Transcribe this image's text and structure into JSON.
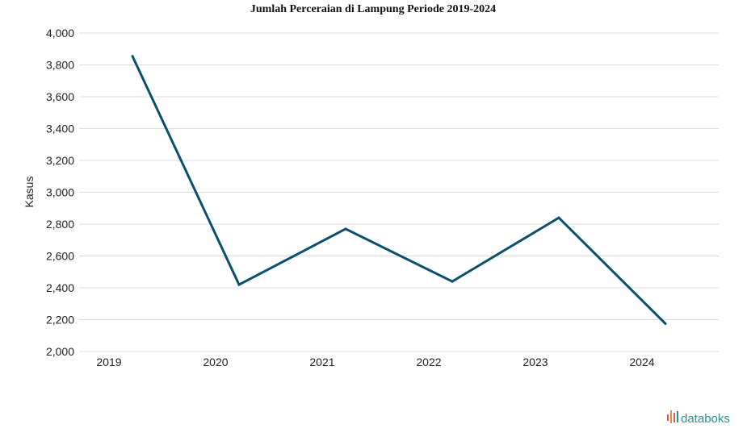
{
  "chart_data": {
    "type": "line",
    "title": "Jumlah Perceraian di Lampung Periode 2019-2024",
    "xlabel": "",
    "ylabel": "Kasus",
    "categories": [
      "2019",
      "2020",
      "2021",
      "2022",
      "2023",
      "2024"
    ],
    "series": [
      {
        "values": [
          3855,
          2420,
          2770,
          2440,
          2840,
          2175
        ]
      }
    ],
    "ylim": [
      2000,
      4000
    ],
    "yticks": [
      2000,
      2200,
      2400,
      2600,
      2800,
      3000,
      3200,
      3400,
      3600,
      3800,
      4000
    ],
    "ytick_labels": [
      "2,000",
      "2,200",
      "2,400",
      "2,600",
      "2,800",
      "3,000",
      "3,200",
      "3,400",
      "3,600",
      "3,800",
      "4,000"
    ],
    "grid": true,
    "colors": {
      "series": "#0b4f6c"
    }
  },
  "brand": {
    "name": "databoks",
    "icon": "databoks-logo-icon",
    "colors": {
      "text": "#2b8f8f",
      "bars": [
        "#e8574b",
        "#f08a3a",
        "#2b8f8f"
      ]
    }
  }
}
